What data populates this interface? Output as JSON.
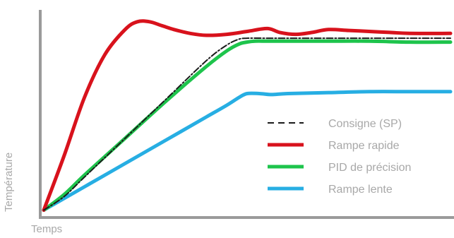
{
  "chart_data": {
    "type": "line",
    "title": "",
    "xlabel": "Temps",
    "ylabel": "Température",
    "xlim": [
      0,
      100
    ],
    "ylim": [
      0,
      100
    ],
    "grid": false,
    "legend_position": "right",
    "series": [
      {
        "name": "Consigne (SP)",
        "color": "#1a1a1a",
        "style": "dashdot",
        "x": [
          0,
          5,
          10,
          20,
          30,
          40,
          45,
          48,
          50,
          55,
          60,
          70,
          80,
          90,
          100
        ],
        "y": [
          2,
          9,
          19,
          39,
          59,
          79,
          87,
          90,
          90.5,
          90.5,
          90.5,
          90.5,
          90.5,
          90.5,
          90.5
        ]
      },
      {
        "name": "Rampe rapide",
        "color": "#d8121c",
        "style": "solid",
        "x": [
          0,
          5,
          10,
          15,
          20,
          23,
          26,
          29,
          32,
          36,
          40,
          45,
          50,
          55,
          58,
          62,
          66,
          70,
          75,
          80,
          85,
          90,
          100
        ],
        "y": [
          2,
          30,
          60,
          82,
          95,
          99,
          99,
          97,
          95,
          93,
          92,
          92.5,
          94,
          95.5,
          93.5,
          92.5,
          93.5,
          95,
          94.5,
          94,
          93.5,
          93,
          93
        ]
      },
      {
        "name": "PID de précision",
        "color": "#1ec44c",
        "style": "solid",
        "x": [
          0,
          5,
          10,
          20,
          30,
          40,
          45,
          48,
          50,
          52,
          55,
          60,
          70,
          80,
          90,
          100
        ],
        "y": [
          2,
          10,
          20,
          39,
          58,
          76,
          84,
          87.5,
          88.5,
          89,
          89,
          89,
          89,
          89,
          88.5,
          88.5
        ]
      },
      {
        "name": "Rampe lente",
        "color": "#27aee3",
        "style": "solid",
        "x": [
          0,
          5,
          10,
          20,
          30,
          40,
          45,
          48,
          50,
          53,
          56,
          60,
          70,
          80,
          90,
          100
        ],
        "y": [
          2,
          8,
          14,
          26,
          38,
          50,
          56,
          60,
          62,
          62,
          61.5,
          62,
          62.5,
          63,
          63,
          63
        ]
      }
    ]
  }
}
